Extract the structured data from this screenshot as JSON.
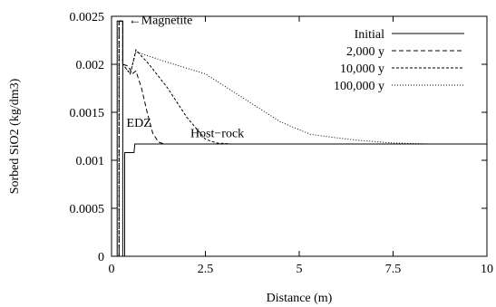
{
  "chart_data": {
    "type": "line",
    "title": "",
    "xlabel": "Distance (m)",
    "ylabel": "Sorbed SiO2 (kg/dm3)",
    "xlim": [
      0,
      10
    ],
    "ylim": [
      0,
      0.0025
    ],
    "x_ticks": [
      0,
      2.5,
      5,
      7.5,
      10
    ],
    "x_tick_labels": [
      "0",
      "2.5",
      "5",
      "7.5",
      "10"
    ],
    "y_ticks": [
      0,
      0.0005,
      0.001,
      0.0015,
      0.002,
      0.0025
    ],
    "y_tick_labels": [
      "0",
      "0.0005",
      "0.001",
      "0.0015",
      "0.002",
      "0.0025"
    ],
    "grid": false,
    "legend_position": "top-right",
    "series": [
      {
        "name": "Initial",
        "dash": "solid",
        "points": [
          [
            0.15,
            0
          ],
          [
            0.15,
            0.00245
          ],
          [
            0.3,
            0.00245
          ],
          [
            0.3,
            0
          ],
          [
            0.35,
            0
          ],
          [
            0.35,
            0.00108
          ],
          [
            0.6,
            0.00108
          ],
          [
            0.62,
            0.00117
          ],
          [
            10,
            0.00117
          ]
        ]
      },
      {
        "name": "2,000 y",
        "dash": "dashed",
        "points": [
          [
            0.2,
            0
          ],
          [
            0.2,
            0.00245
          ],
          [
            0.3,
            0.00245
          ],
          [
            0.3,
            0.002
          ],
          [
            0.45,
            0.00198
          ],
          [
            0.55,
            0.0019
          ],
          [
            0.65,
            0.00193
          ],
          [
            0.8,
            0.00175
          ],
          [
            0.95,
            0.0015
          ],
          [
            1.1,
            0.00128
          ],
          [
            1.25,
            0.00119
          ],
          [
            1.4,
            0.00117
          ],
          [
            10,
            0.00117
          ]
        ]
      },
      {
        "name": "10,000 y",
        "dash": "short-dashed",
        "points": [
          [
            0.2,
            0
          ],
          [
            0.2,
            0.00245
          ],
          [
            0.3,
            0.00245
          ],
          [
            0.3,
            0.002
          ],
          [
            0.5,
            0.0019
          ],
          [
            0.65,
            0.00215
          ],
          [
            1.0,
            0.002
          ],
          [
            1.5,
            0.00175
          ],
          [
            2.0,
            0.00145
          ],
          [
            2.5,
            0.00122
          ],
          [
            2.8,
            0.00118
          ],
          [
            3.2,
            0.00117
          ],
          [
            10,
            0.00117
          ]
        ]
      },
      {
        "name": "100,000 y",
        "dash": "dotted",
        "points": [
          [
            0.2,
            0
          ],
          [
            0.2,
            0.00245
          ],
          [
            0.3,
            0.00245
          ],
          [
            0.3,
            0.002
          ],
          [
            0.5,
            0.0019
          ],
          [
            0.65,
            0.00213
          ],
          [
            1.5,
            0.00202
          ],
          [
            2.5,
            0.0019
          ],
          [
            3.5,
            0.00165
          ],
          [
            4.5,
            0.0014
          ],
          [
            5.3,
            0.00127
          ],
          [
            6.5,
            0.00121
          ],
          [
            7.5,
            0.00118
          ],
          [
            8.5,
            0.00117
          ],
          [
            10,
            0.00117
          ]
        ]
      }
    ],
    "annotations": [
      {
        "id": "magnetite",
        "text": "←Magnetite",
        "x": 0.45,
        "y": 0.00242
      },
      {
        "id": "edz",
        "text": "EDZ",
        "x": 0.4,
        "y": 0.00135
      },
      {
        "id": "host-rock",
        "text": "Host−rock",
        "x": 2.1,
        "y": 0.00124
      }
    ]
  }
}
